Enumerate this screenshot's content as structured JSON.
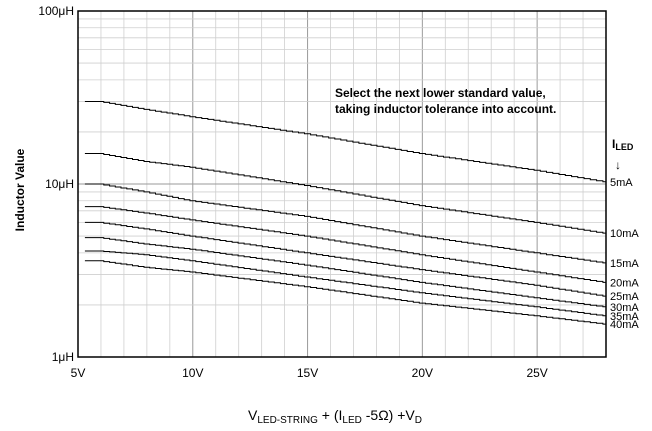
{
  "chart_data": {
    "type": "line",
    "ylabel": "Inductor Value",
    "xlabel": {
      "parts": [
        {
          "text": "V",
          "sub": false
        },
        {
          "text": "LED-STRING",
          "sub": true
        },
        {
          "text": " + (I",
          "sub": false
        },
        {
          "text": "LED",
          "sub": true
        },
        {
          "text": " -5Ω) +V",
          "sub": false
        },
        {
          "text": "D",
          "sub": true
        }
      ]
    },
    "xlim": [
      5,
      28
    ],
    "ylim": [
      1,
      100
    ],
    "y_scale": "log",
    "grid": true,
    "x_ticks": [
      {
        "value": 5,
        "label": "5V"
      },
      {
        "value": 10,
        "label": "10V"
      },
      {
        "value": 15,
        "label": "15V"
      },
      {
        "value": 20,
        "label": "20V"
      },
      {
        "value": 25,
        "label": "25V"
      }
    ],
    "y_ticks": [
      {
        "value": 1,
        "label": "1μH"
      },
      {
        "value": 10,
        "label": "10μH"
      },
      {
        "value": 100,
        "label": "100μH"
      }
    ],
    "annotation": {
      "lines": [
        "Select the next lower standard value,",
        "taking inductor tolerance into account."
      ]
    },
    "legend_header": {
      "main": "I",
      "sub": "LED",
      "arrow": "↓"
    },
    "series": [
      {
        "name": "5mA",
        "points": [
          [
            5.3,
            30
          ],
          [
            6,
            30
          ],
          [
            8,
            27
          ],
          [
            10,
            24.5
          ],
          [
            15,
            19.5
          ],
          [
            20,
            15
          ],
          [
            25,
            12
          ],
          [
            28,
            10.3
          ]
        ]
      },
      {
        "name": "10mA",
        "points": [
          [
            5.3,
            15
          ],
          [
            6,
            15
          ],
          [
            8,
            13.5
          ],
          [
            10,
            12.5
          ],
          [
            15,
            9.8
          ],
          [
            20,
            7.5
          ],
          [
            25,
            6
          ],
          [
            28,
            5.2
          ]
        ]
      },
      {
        "name": "15mA",
        "points": [
          [
            5.3,
            10
          ],
          [
            6,
            10
          ],
          [
            8,
            9
          ],
          [
            10,
            8
          ],
          [
            15,
            6.5
          ],
          [
            20,
            5
          ],
          [
            25,
            4
          ],
          [
            28,
            3.5
          ]
        ]
      },
      {
        "name": "20mA",
        "points": [
          [
            5.3,
            7.4
          ],
          [
            6,
            7.4
          ],
          [
            8,
            6.8
          ],
          [
            10,
            6.2
          ],
          [
            15,
            5
          ],
          [
            20,
            3.9
          ],
          [
            25,
            3.1
          ],
          [
            28,
            2.7
          ]
        ]
      },
      {
        "name": "25mA",
        "points": [
          [
            5.3,
            6
          ],
          [
            6,
            6
          ],
          [
            8,
            5.5
          ],
          [
            10,
            5
          ],
          [
            15,
            4
          ],
          [
            20,
            3.2
          ],
          [
            25,
            2.6
          ],
          [
            28,
            2.25
          ]
        ]
      },
      {
        "name": "30mA",
        "points": [
          [
            5.3,
            4.9
          ],
          [
            6,
            4.9
          ],
          [
            8,
            4.5
          ],
          [
            10,
            4.2
          ],
          [
            15,
            3.4
          ],
          [
            20,
            2.7
          ],
          [
            25,
            2.2
          ],
          [
            28,
            1.95
          ]
        ]
      },
      {
        "name": "35mA",
        "points": [
          [
            5.3,
            4.1
          ],
          [
            6,
            4.1
          ],
          [
            8,
            3.9
          ],
          [
            10,
            3.6
          ],
          [
            15,
            2.9
          ],
          [
            20,
            2.35
          ],
          [
            25,
            1.95
          ],
          [
            28,
            1.73
          ]
        ]
      },
      {
        "name": "40mA",
        "points": [
          [
            5.3,
            3.6
          ],
          [
            6,
            3.6
          ],
          [
            8,
            3.3
          ],
          [
            10,
            3.1
          ],
          [
            15,
            2.55
          ],
          [
            20,
            2.05
          ],
          [
            25,
            1.73
          ],
          [
            28,
            1.55
          ]
        ]
      }
    ]
  }
}
